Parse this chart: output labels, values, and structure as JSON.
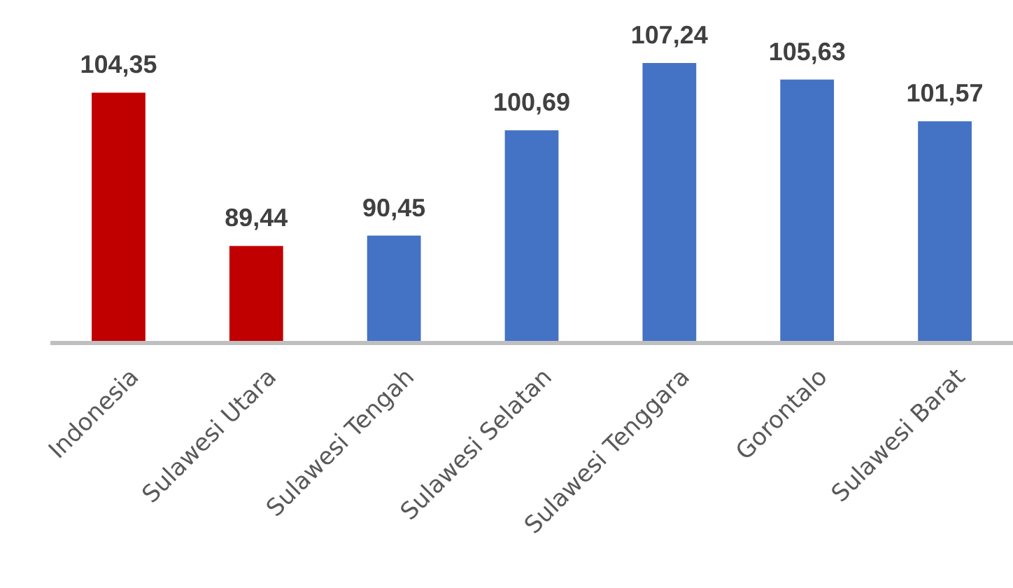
{
  "chart_data": {
    "type": "bar",
    "categories": [
      "Indonesia",
      "Sulawesi Utara",
      "Sulawesi Tengah",
      "Sulawesi Selatan",
      "Sulawesi Tenggara",
      "Gorontalo",
      "Sulawesi Barat"
    ],
    "values": [
      104.35,
      89.44,
      90.45,
      100.69,
      107.24,
      105.63,
      101.57
    ],
    "colors": [
      "#c00000",
      "#c00000",
      "#4472c4",
      "#4472c4",
      "#4472c4",
      "#4472c4",
      "#4472c4"
    ],
    "value_labels": [
      "104,35",
      "89,44",
      "90,45",
      "100,69",
      "107,24",
      "105,63",
      "101,57"
    ],
    "ylim": [
      80,
      107.24
    ]
  }
}
